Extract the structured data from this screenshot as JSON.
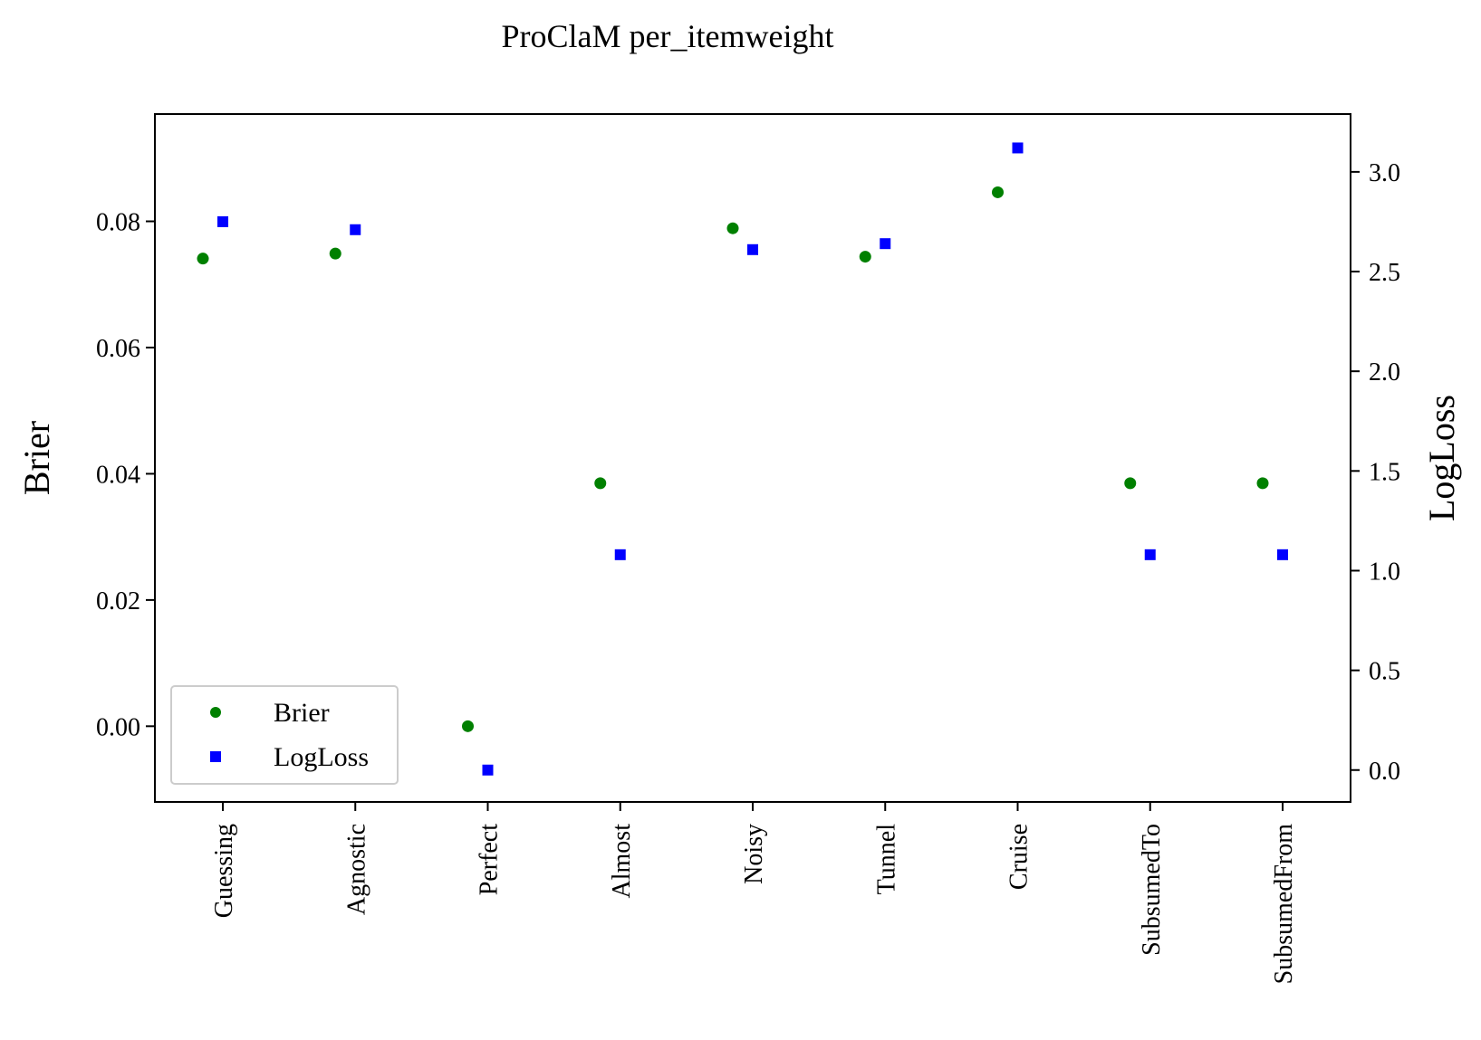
{
  "chart_data": {
    "type": "scatter",
    "title": "ProClaM per_itemweight",
    "categories": [
      "Guessing",
      "Agnostic",
      "Perfect",
      "Almost",
      "Noisy",
      "Tunnel",
      "Cruise",
      "SubsumedTo",
      "SubsumedFrom"
    ],
    "left_axis": {
      "label": "Brier",
      "ylim": [
        -0.012,
        0.097
      ],
      "ticks": [
        "0.00",
        "0.02",
        "0.04",
        "0.06",
        "0.08"
      ],
      "tick_values": [
        0.0,
        0.02,
        0.04,
        0.06,
        0.08
      ]
    },
    "right_axis": {
      "label": "LogLoss",
      "ylim": [
        -0.16,
        3.29
      ],
      "ticks": [
        "0.0",
        "0.5",
        "1.0",
        "1.5",
        "2.0",
        "2.5",
        "3.0"
      ],
      "tick_values": [
        0.0,
        0.5,
        1.0,
        1.5,
        2.0,
        2.5,
        3.0
      ]
    },
    "series": [
      {
        "name": "Brier",
        "axis": "left",
        "marker": "circle",
        "color": "#008000",
        "values": [
          0.0741,
          0.0749,
          0.0,
          0.0385,
          0.0789,
          0.0744,
          0.0846,
          0.0385,
          0.0385
        ]
      },
      {
        "name": "LogLoss",
        "axis": "right",
        "marker": "square",
        "color": "#0000ff",
        "values": [
          2.75,
          2.71,
          0.0,
          1.08,
          2.61,
          2.64,
          3.12,
          1.08,
          1.08
        ]
      }
    ],
    "legend": {
      "position": "lower-left"
    },
    "grid": false
  }
}
